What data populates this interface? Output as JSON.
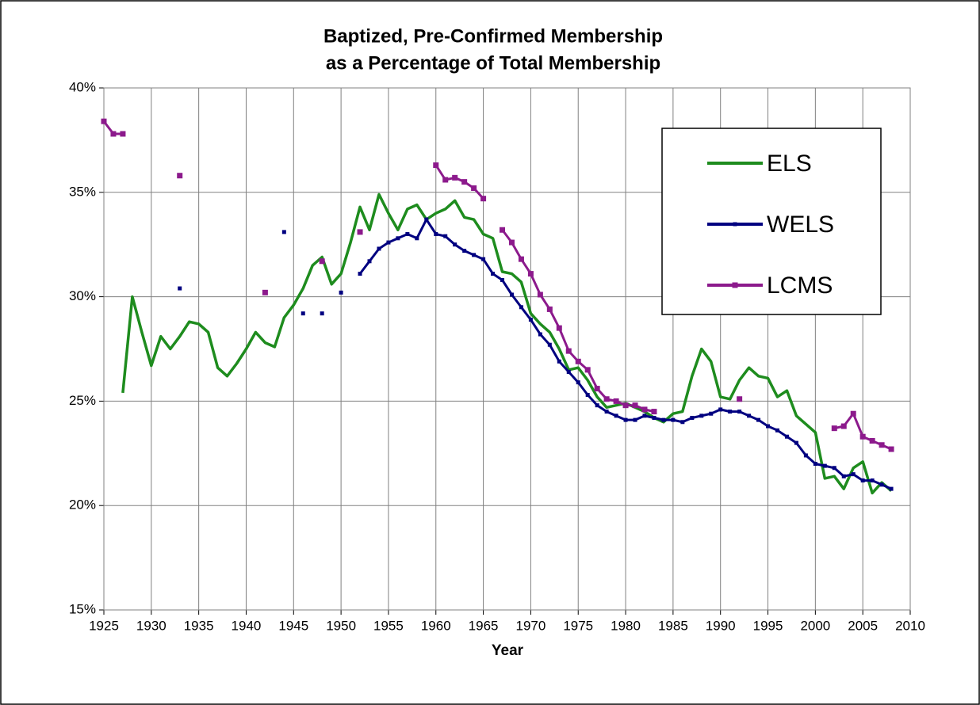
{
  "chart_data": {
    "type": "line",
    "title": [
      "Baptized, Pre-Confirmed Membership",
      "as a Percentage of Total Membership"
    ],
    "x_label": "Year",
    "x": [
      1925,
      1926,
      1927,
      1928,
      1929,
      1930,
      1931,
      1932,
      1933,
      1934,
      1935,
      1936,
      1937,
      1938,
      1939,
      1940,
      1941,
      1942,
      1943,
      1944,
      1945,
      1946,
      1947,
      1948,
      1949,
      1950,
      1951,
      1952,
      1953,
      1954,
      1955,
      1956,
      1957,
      1958,
      1959,
      1960,
      1961,
      1962,
      1963,
      1964,
      1965,
      1966,
      1967,
      1968,
      1969,
      1970,
      1971,
      1972,
      1973,
      1974,
      1975,
      1976,
      1977,
      1978,
      1979,
      1980,
      1981,
      1982,
      1983,
      1984,
      1985,
      1986,
      1987,
      1988,
      1989,
      1990,
      1991,
      1992,
      1993,
      1994,
      1995,
      1996,
      1997,
      1998,
      1999,
      2000,
      2001,
      2002,
      2003,
      2004,
      2005,
      2006,
      2007,
      2008
    ],
    "series": [
      {
        "name": "ELS",
        "color": "#1e8c1e",
        "marker": "none",
        "values": [
          null,
          null,
          25.4,
          30.0,
          28.3,
          26.7,
          28.1,
          27.5,
          28.1,
          28.8,
          28.7,
          28.3,
          26.6,
          26.2,
          26.8,
          27.5,
          28.3,
          27.8,
          27.6,
          29.0,
          29.6,
          30.4,
          31.5,
          31.9,
          30.6,
          31.1,
          32.6,
          34.3,
          33.2,
          34.9,
          34.0,
          33.2,
          34.2,
          34.4,
          33.7,
          34.0,
          34.2,
          34.6,
          33.8,
          33.7,
          33.0,
          32.8,
          31.2,
          31.1,
          30.7,
          29.2,
          28.7,
          28.3,
          27.5,
          26.5,
          26.6,
          26.0,
          25.2,
          24.7,
          24.8,
          24.9,
          24.7,
          24.5,
          24.2,
          24.0,
          24.4,
          24.5,
          26.2,
          27.5,
          26.9,
          25.2,
          25.1,
          26.0,
          26.6,
          26.2,
          26.1,
          25.2,
          25.5,
          24.3,
          23.9,
          23.5,
          21.3,
          21.4,
          20.8,
          21.8,
          22.1,
          20.6,
          21.1,
          20.7
        ]
      },
      {
        "name": "WELS",
        "color": "#000080",
        "marker": "square",
        "values": [
          null,
          null,
          null,
          null,
          null,
          null,
          null,
          null,
          30.4,
          null,
          null,
          null,
          null,
          null,
          null,
          null,
          null,
          null,
          null,
          33.1,
          null,
          29.2,
          null,
          29.2,
          null,
          30.2,
          null,
          31.1,
          31.7,
          32.3,
          32.6,
          32.8,
          33.0,
          32.8,
          33.7,
          33.0,
          32.9,
          32.5,
          32.2,
          32.0,
          31.8,
          31.1,
          30.8,
          30.1,
          29.5,
          28.9,
          28.2,
          27.7,
          26.9,
          26.4,
          25.9,
          25.3,
          24.8,
          24.5,
          24.3,
          24.1,
          24.1,
          24.3,
          24.2,
          24.1,
          24.1,
          24.0,
          24.2,
          24.3,
          24.4,
          24.6,
          24.5,
          24.5,
          24.3,
          24.1,
          23.8,
          23.6,
          23.3,
          23.0,
          22.4,
          22.0,
          21.9,
          21.8,
          21.4,
          21.5,
          21.2,
          21.2,
          21.0,
          20.8
        ]
      },
      {
        "name": "LCMS",
        "color": "#8c1a8c",
        "marker": "square",
        "values": [
          38.4,
          37.8,
          37.8,
          null,
          null,
          null,
          null,
          null,
          35.8,
          null,
          null,
          null,
          null,
          null,
          null,
          null,
          null,
          30.2,
          null,
          null,
          null,
          null,
          null,
          31.7,
          null,
          null,
          null,
          33.1,
          null,
          null,
          null,
          null,
          null,
          null,
          null,
          36.3,
          35.6,
          35.7,
          35.5,
          35.2,
          34.7,
          null,
          33.2,
          32.6,
          31.8,
          31.1,
          30.1,
          29.4,
          28.5,
          27.4,
          26.9,
          26.5,
          25.6,
          25.1,
          25.0,
          24.8,
          24.8,
          24.6,
          24.5,
          null,
          null,
          null,
          null,
          null,
          null,
          null,
          null,
          25.1,
          null,
          null,
          null,
          null,
          null,
          null,
          null,
          null,
          null,
          23.7,
          23.8,
          24.4,
          23.3,
          23.1,
          22.9,
          22.7
        ]
      }
    ],
    "xlim": [
      1925,
      2010
    ],
    "xticks": [
      1925,
      1930,
      1935,
      1940,
      1945,
      1950,
      1955,
      1960,
      1965,
      1970,
      1975,
      1980,
      1985,
      1990,
      1995,
      2000,
      2005,
      2010
    ],
    "ylim": [
      15,
      40
    ],
    "yticks": [
      {
        "value": 15,
        "label": "15%"
      },
      {
        "value": 20,
        "label": "20%"
      },
      {
        "value": 25,
        "label": "25%"
      },
      {
        "value": 30,
        "label": "30%"
      },
      {
        "value": 35,
        "label": "35%"
      },
      {
        "value": 40,
        "label": "40%"
      }
    ],
    "grid": true,
    "legend": "upper right"
  }
}
